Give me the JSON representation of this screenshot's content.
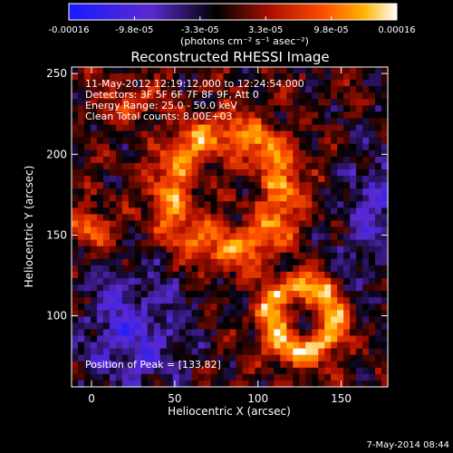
{
  "chart_data": {
    "type": "heatmap",
    "title": "Reconstructed RHESSI Image",
    "xlabel": "Heliocentric X (arcsec)",
    "ylabel": "Heliocentric Y (arcsec)",
    "xlim": [
      -12,
      178
    ],
    "ylim": [
      56,
      254
    ],
    "xticks": [
      0,
      50,
      100,
      150
    ],
    "yticks": [
      100,
      150,
      200,
      250
    ],
    "colorbar": {
      "range": [
        -0.00016,
        0.00016
      ],
      "tick_labels": [
        "-0.00016",
        "-9.8e-05",
        "-3.3e-05",
        "3.3e-05",
        "9.8e-05",
        "0.00016"
      ],
      "units_label": "(photons cm⁻² s⁻¹ asec⁻²)"
    },
    "annotations": [
      "11-May-2012 12:19:12.000 to 12:24:54.000",
      "Detectors: 3F 5F 6F 7F 8F 9F, Att 0",
      "Energy Range: 25.0 - 50.0 keV",
      "Clean     Total counts: 8.00E+03"
    ],
    "peak_label": "Position of Peak = [133,82]",
    "peak_position": [
      133,
      82
    ],
    "colors": [
      "#1a1aff",
      "#5a2ad0",
      "#000000",
      "#b01000",
      "#ff5000",
      "#ffb400",
      "#ffffff"
    ]
  },
  "footer": {
    "timestamp": "7-May-2014 08:44"
  }
}
